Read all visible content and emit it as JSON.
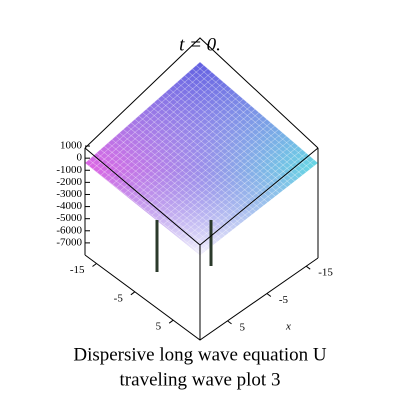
{
  "chart_data": {
    "type": "surface",
    "title": "t = 0.",
    "caption": [
      "Dispersive long wave equation U",
      "traveling wave plot 3"
    ],
    "zlim": [
      -8000,
      1500
    ],
    "zticks": [
      1000,
      0,
      -1000,
      -2000,
      -3000,
      -4000,
      -5000,
      -6000,
      -7000
    ],
    "xlim": [
      -18,
      12
    ],
    "xticks": [
      -15,
      -5,
      5
    ],
    "xlabel": "x",
    "ylim": [
      -18,
      12
    ],
    "yticks": [
      -15,
      -5,
      5
    ]
  }
}
